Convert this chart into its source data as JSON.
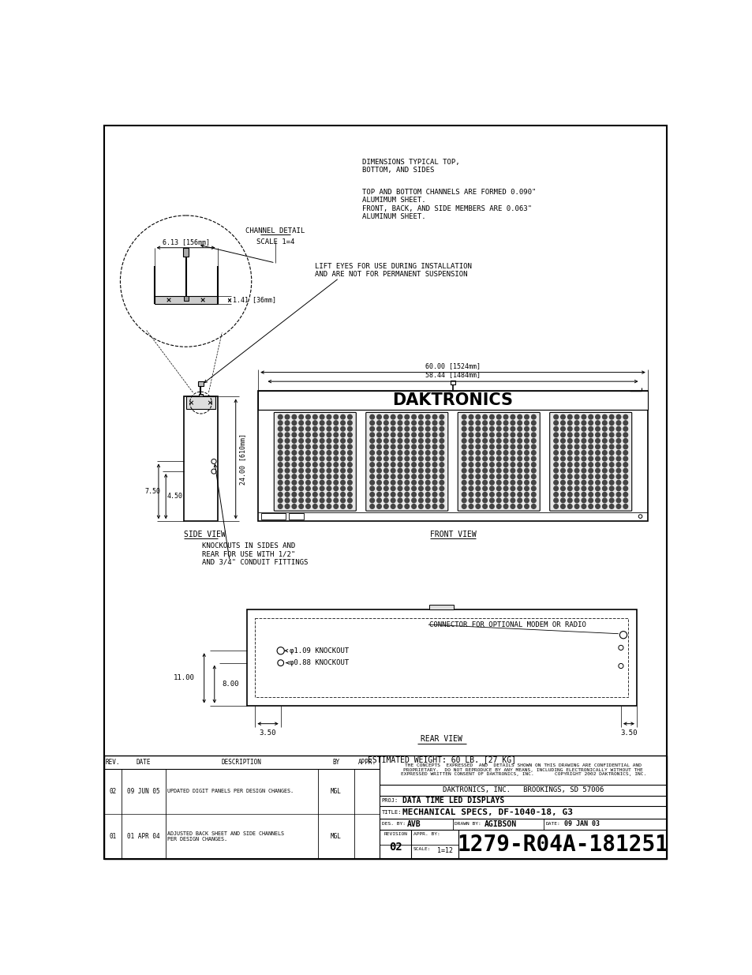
{
  "bg_color": "#ffffff",
  "line_color": "#000000",
  "title_block": {
    "confidential_text": "THE CONCEPTS  EXPRESSED  AND  DETAILS SHOWN ON THIS DRAWING ARE CONFIDENTIAL AND\nPROPRIETARY.  DO NOT REPRODUCE BY ANY MEANS, INCLUDING ELECTRONICALLY WITHOUT THE\nEXPRESSED WRITTEN CONSENT OF DAKTRONICS, INC.       COPYRIGHT 2002 DAKTRONICS, INC.",
    "company": "DAKTRONICS, INC.   BROOKINGS, SD 57006",
    "proj": "DATA TIME LED DISPLAYS",
    "title": "MECHANICAL SPECS, DF-1040-18, G3",
    "des": "AVB",
    "drawn": "AGIBSON",
    "date": "09 JAN 03",
    "scale": "1=12",
    "drawing_num": "1279-R04A-181251"
  },
  "annotations": {
    "channel_detail": "CHANNEL DETAIL\nSCALE 1=4",
    "dim_typical": "DIMENSIONS TYPICAL TOP,\nBOTTOM, AND SIDES",
    "channels_formed": "TOP AND BOTTOM CHANNELS ARE FORMED 0.090\"\nALUMIMUM SHEET.\nFRONT, BACK, AND SIDE MEMBERS ARE 0.063\"\nALUMINUM SHEET.",
    "lift_eyes": "LIFT EYES FOR USE DURING INSTALLATION\nAND ARE NOT FOR PERMANENT SUSPENSION",
    "knockouts_side": "KNOCKOUTS IN SIDES AND\nREAR FOR USE WITH 1/2\"\nAND 3/4\" CONDUIT FITTINGS",
    "front_view": "FRONT VIEW",
    "side_view": "SIDE VIEW",
    "rear_view": "REAR VIEW",
    "estimated_weight": "ESTIMATED WEIGHT: 60 LB. [27 KG]",
    "connector": "CONNECTOR FOR OPTIONAL MODEM OR RADIO",
    "knockout_109": "φ1.09 KNOCKOUT",
    "knockout_088": "φ0.88 KNOCKOUT",
    "dim_60": "60.00 [1524mm]",
    "dim_5844": "58.44 [1484mm]",
    "dim_613": "6.13 [156mm]",
    "dim_141": "1.41 [36mm]",
    "dim_2400": "24.00 [610mm]"
  }
}
